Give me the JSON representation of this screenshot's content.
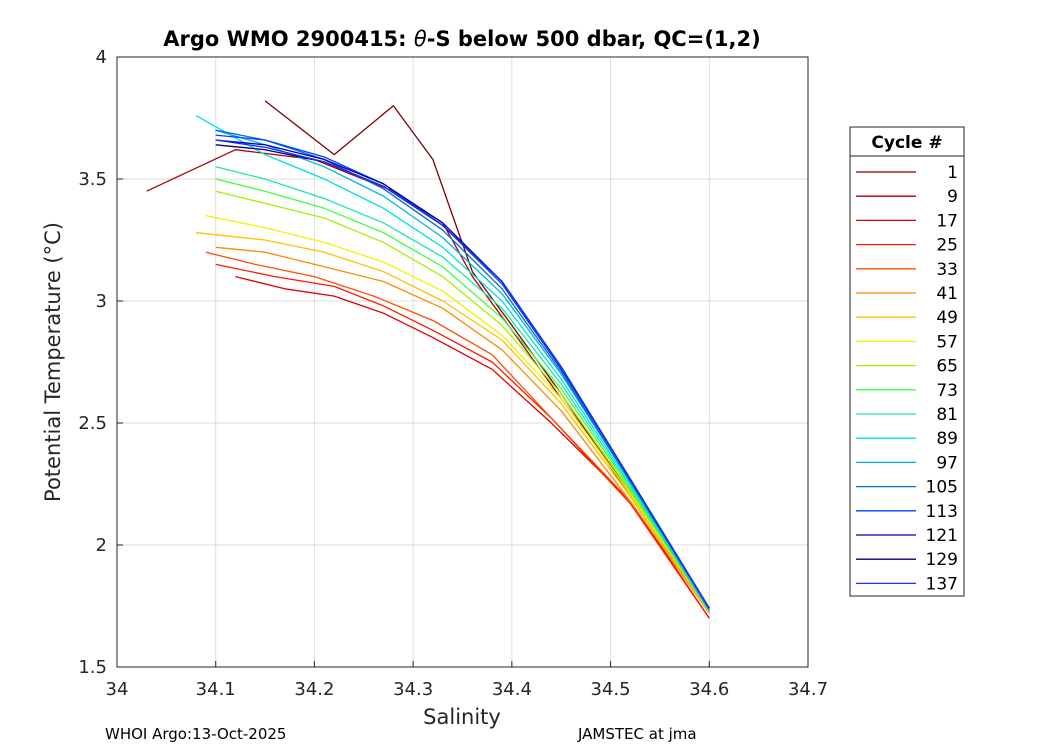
{
  "chart_data": {
    "type": "line",
    "title_prefix": "Argo WMO 2900415: ",
    "title_theta": "θ",
    "title_suffix": "-S below 500 dbar,  QC=(1,2)",
    "xlabel": "Salinity",
    "ylabel": "Potential Temperature (°C)",
    "xlim": [
      34.0,
      34.7
    ],
    "ylim": [
      1.5,
      4.0
    ],
    "xticks": [
      34.0,
      34.1,
      34.2,
      34.3,
      34.4,
      34.5,
      34.6,
      34.7
    ],
    "xtick_labels": [
      "34",
      "34.1",
      "34.2",
      "34.3",
      "34.4",
      "34.5",
      "34.6",
      "34.7"
    ],
    "yticks": [
      1.5,
      2.0,
      2.5,
      3.0,
      3.5,
      4.0
    ],
    "ytick_labels": [
      "1.5",
      "2",
      "2.5",
      "3",
      "3.5",
      "4"
    ],
    "grid": true,
    "legend_title": "Cycle #",
    "legend_position": "outside-right",
    "series": [
      {
        "name": "1",
        "color": "#800000",
        "s": [
          34.6,
          34.52,
          34.45,
          34.4,
          34.36,
          34.34,
          34.32,
          34.28,
          34.22,
          34.15
        ],
        "t": [
          1.72,
          2.2,
          2.62,
          2.9,
          3.12,
          3.35,
          3.58,
          3.8,
          3.6,
          3.82
        ]
      },
      {
        "name": "9",
        "color": "#b00000",
        "s": [
          34.6,
          34.52,
          34.45,
          34.4,
          34.36,
          34.33,
          34.28,
          34.2,
          34.12,
          34.03
        ],
        "t": [
          1.72,
          2.22,
          2.6,
          2.88,
          3.1,
          3.32,
          3.45,
          3.58,
          3.62,
          3.45
        ]
      },
      {
        "name": "17",
        "color": "#e00000",
        "s": [
          34.6,
          34.52,
          34.44,
          34.38,
          34.32,
          34.27,
          34.22,
          34.17,
          34.12
        ],
        "t": [
          1.7,
          2.18,
          2.5,
          2.72,
          2.85,
          2.95,
          3.02,
          3.05,
          3.1
        ]
      },
      {
        "name": "25",
        "color": "#ff1a00",
        "s": [
          34.6,
          34.52,
          34.44,
          34.38,
          34.32,
          34.27,
          34.22,
          34.16,
          34.1
        ],
        "t": [
          1.7,
          2.17,
          2.52,
          2.75,
          2.88,
          2.98,
          3.06,
          3.1,
          3.15
        ]
      },
      {
        "name": "33",
        "color": "#ff5000",
        "s": [
          34.6,
          34.52,
          34.44,
          34.38,
          34.32,
          34.26,
          34.2,
          34.14,
          34.09
        ],
        "t": [
          1.72,
          2.18,
          2.52,
          2.78,
          2.92,
          3.02,
          3.1,
          3.15,
          3.2
        ]
      },
      {
        "name": "41",
        "color": "#ff8a00",
        "s": [
          34.6,
          34.52,
          34.45,
          34.39,
          34.33,
          34.27,
          34.21,
          34.15,
          34.1
        ],
        "t": [
          1.72,
          2.18,
          2.55,
          2.8,
          2.97,
          3.08,
          3.14,
          3.2,
          3.22
        ]
      },
      {
        "name": "49",
        "color": "#ffc000",
        "s": [
          34.6,
          34.52,
          34.45,
          34.39,
          34.33,
          34.27,
          34.21,
          34.15,
          34.08
        ],
        "t": [
          1.72,
          2.2,
          2.58,
          2.84,
          3.0,
          3.12,
          3.2,
          3.25,
          3.28
        ]
      },
      {
        "name": "57",
        "color": "#f2f200",
        "s": [
          34.6,
          34.52,
          34.45,
          34.39,
          34.33,
          34.27,
          34.21,
          34.15,
          34.09
        ],
        "t": [
          1.73,
          2.21,
          2.6,
          2.86,
          3.04,
          3.16,
          3.24,
          3.3,
          3.35
        ]
      },
      {
        "name": "65",
        "color": "#a8f000",
        "s": [
          34.6,
          34.52,
          34.45,
          34.39,
          34.33,
          34.27,
          34.21,
          34.15,
          34.1
        ],
        "t": [
          1.73,
          2.22,
          2.62,
          2.9,
          3.1,
          3.24,
          3.34,
          3.4,
          3.45
        ]
      },
      {
        "name": "73",
        "color": "#40ff40",
        "s": [
          34.6,
          34.52,
          34.45,
          34.39,
          34.33,
          34.27,
          34.21,
          34.15,
          34.1
        ],
        "t": [
          1.73,
          2.23,
          2.64,
          2.93,
          3.14,
          3.28,
          3.38,
          3.45,
          3.5
        ]
      },
      {
        "name": "81",
        "color": "#20e8a0",
        "s": [
          34.6,
          34.52,
          34.45,
          34.39,
          34.33,
          34.27,
          34.21,
          34.15,
          34.1
        ],
        "t": [
          1.73,
          2.24,
          2.66,
          2.97,
          3.18,
          3.32,
          3.42,
          3.5,
          3.55
        ]
      },
      {
        "name": "89",
        "color": "#00e0e0",
        "s": [
          34.6,
          34.52,
          34.45,
          34.39,
          34.33,
          34.27,
          34.21,
          34.15,
          34.08
        ],
        "t": [
          1.73,
          2.25,
          2.68,
          3.0,
          3.22,
          3.38,
          3.5,
          3.6,
          3.76
        ]
      },
      {
        "name": "97",
        "color": "#00b4dc",
        "s": [
          34.6,
          34.52,
          34.45,
          34.39,
          34.33,
          34.27,
          34.21,
          34.15,
          34.1
        ],
        "t": [
          1.73,
          2.26,
          2.7,
          3.03,
          3.26,
          3.43,
          3.55,
          3.64,
          3.7
        ]
      },
      {
        "name": "105",
        "color": "#0070c0",
        "s": [
          34.6,
          34.52,
          34.45,
          34.39,
          34.33,
          34.27,
          34.21,
          34.15,
          34.1
        ],
        "t": [
          1.74,
          2.26,
          2.71,
          3.05,
          3.29,
          3.46,
          3.58,
          3.66,
          3.7
        ]
      },
      {
        "name": "113",
        "color": "#0040ff",
        "s": [
          34.6,
          34.52,
          34.45,
          34.39,
          34.33,
          34.27,
          34.21,
          34.15,
          34.1
        ],
        "t": [
          1.74,
          2.27,
          2.72,
          3.07,
          3.31,
          3.48,
          3.59,
          3.66,
          3.68
        ]
      },
      {
        "name": "121",
        "color": "#0000b0",
        "s": [
          34.6,
          34.52,
          34.45,
          34.39,
          34.33,
          34.27,
          34.21,
          34.15,
          34.1
        ],
        "t": [
          1.74,
          2.27,
          2.73,
          3.08,
          3.32,
          3.48,
          3.58,
          3.64,
          3.66
        ]
      },
      {
        "name": "129",
        "color": "#000080",
        "s": [
          34.6,
          34.52,
          34.45,
          34.39,
          34.33,
          34.27,
          34.21,
          34.15,
          34.1
        ],
        "t": [
          1.74,
          2.27,
          2.73,
          3.08,
          3.31,
          3.47,
          3.57,
          3.62,
          3.64
        ]
      },
      {
        "name": "137",
        "color": "#1830ff",
        "s": [
          34.6,
          34.52,
          34.45,
          34.39,
          34.33,
          34.27,
          34.21,
          34.15,
          34.1
        ],
        "t": [
          1.74,
          2.27,
          2.73,
          3.08,
          3.31,
          3.47,
          3.57,
          3.63,
          3.66
        ]
      }
    ]
  },
  "footer": {
    "left": "WHOI Argo:13-Oct-2025",
    "right": "JAMSTEC at jma"
  }
}
